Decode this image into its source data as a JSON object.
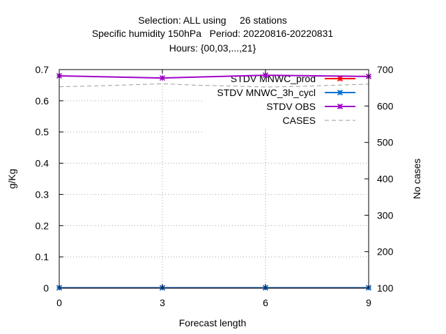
{
  "chart_data": {
    "type": "line",
    "title_lines": [
      "Selection: ALL using     26 stations",
      "Specific humidity 150hPa   Period: 20220816-20220831",
      "Hours: {00,03,...,21}"
    ],
    "xlabel": "Forecast length",
    "ylabel": "g/Kg",
    "y2label": "No cases",
    "xlim": [
      0,
      9
    ],
    "ylim": [
      0,
      0.7
    ],
    "y2lim": [
      100,
      700
    ],
    "xticks": [
      0,
      3,
      6,
      9
    ],
    "yticks": [
      0,
      0.1,
      0.2,
      0.3,
      0.4,
      0.5,
      0.6,
      0.7
    ],
    "y2ticks": [
      100,
      200,
      300,
      400,
      500,
      600,
      700
    ],
    "grid": true,
    "legend_position": "top-right",
    "series": [
      {
        "name": "STDV MNWC_prod",
        "color": "#ff0000",
        "axis": "y",
        "marker": "cross",
        "x": [
          0,
          3,
          6,
          9
        ],
        "values": [
          0.001,
          0.001,
          0.001,
          0.001
        ]
      },
      {
        "name": "STDV MNWC_3h_cycl",
        "color": "#0070d0",
        "axis": "y",
        "marker": "cross",
        "x": [
          0,
          3,
          6,
          9
        ],
        "values": [
          0.001,
          0.001,
          0.001,
          0.001
        ]
      },
      {
        "name": "STDV OBS",
        "color": "#a000c8",
        "axis": "y",
        "marker": "cross",
        "x": [
          0,
          3,
          6,
          9
        ],
        "values": [
          0.68,
          0.673,
          0.682,
          0.678
        ]
      },
      {
        "name": "CASES",
        "color": "#9a9a9a",
        "axis": "y2",
        "dashed": true,
        "x": [
          0,
          1,
          2,
          3,
          4,
          5,
          6,
          7,
          8,
          9
        ],
        "values": [
          653,
          655,
          658,
          661,
          657,
          655,
          652,
          654,
          657,
          660
        ]
      }
    ]
  }
}
